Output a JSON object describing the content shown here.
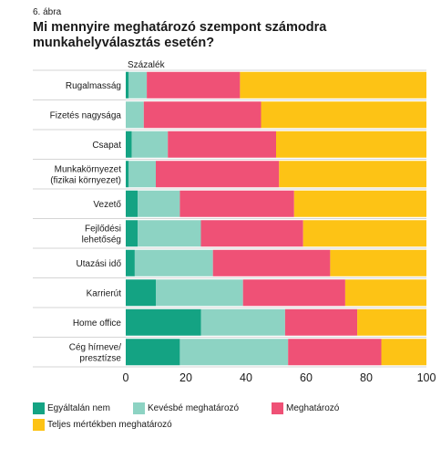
{
  "figure_number": "6. ábra",
  "title": "Mi mennyire meghatározó szempont számodra munkahelyválasztás esetén?",
  "chart_data": {
    "type": "bar",
    "orientation": "horizontal",
    "stacked": true,
    "unit_label": "Százalék",
    "categories": [
      [
        "Rugalmasság"
      ],
      [
        "Fizetés nagysága"
      ],
      [
        "Csapat"
      ],
      [
        "Munkakörnyezet",
        "(fizikai környezet)"
      ],
      [
        "Vezető"
      ],
      [
        "Fejlődési",
        "lehetőség"
      ],
      [
        "Utazási idő"
      ],
      [
        "Karrierút"
      ],
      [
        "Home office"
      ],
      [
        "Cég hírneve/",
        "presztízse"
      ]
    ],
    "series": [
      {
        "name": "Egyáltalán nem",
        "color": "#14a383",
        "values": [
          1,
          0,
          2,
          1,
          4,
          4,
          3,
          10,
          25,
          18
        ]
      },
      {
        "name": "Kevésbé meghatározó",
        "color": "#8dd3c3",
        "values": [
          6,
          6,
          12,
          9,
          14,
          21,
          26,
          29,
          28,
          36
        ]
      },
      {
        "name": "Meghatározó",
        "color": "#ef5176",
        "values": [
          31,
          39,
          36,
          41,
          38,
          34,
          39,
          34,
          24,
          31
        ]
      },
      {
        "name": "Teljes mértékben meghatározó",
        "color": "#fdc315",
        "values": [
          62,
          55,
          50,
          49,
          44,
          41,
          32,
          27,
          23,
          15
        ]
      }
    ],
    "xlim": [
      0,
      100
    ],
    "xticks": [
      0,
      20,
      40,
      60,
      80,
      100
    ],
    "grid": false,
    "legend_position": "bottom"
  }
}
